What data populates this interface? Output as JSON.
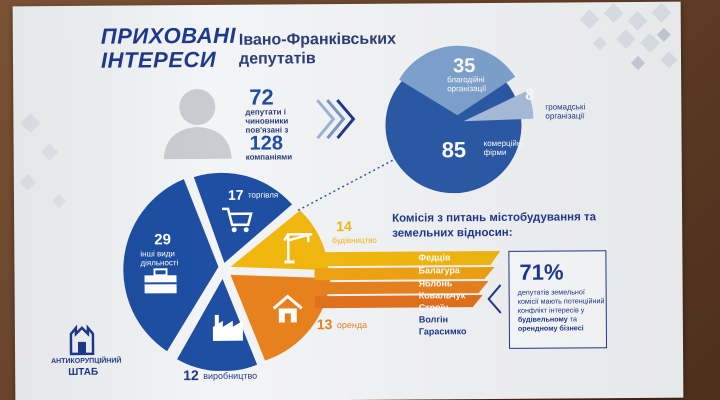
{
  "header": {
    "title_line1": "ПРИХОВАНІ",
    "title_line2": "ІНТЕРЕСИ",
    "subtitle": "Івано-Франківських депутатів"
  },
  "summary": {
    "count_people": "72",
    "people_text": "депутати і чиновники пов'язані з",
    "count_companies": "128",
    "companies_text": "компаніями"
  },
  "org_pie": {
    "items": [
      {
        "value": "35",
        "label": "благодійні організації"
      },
      {
        "value": "8",
        "label": "громадські організації"
      },
      {
        "value": "85",
        "label": "комерційні фірми"
      }
    ]
  },
  "activity_pie": {
    "items": [
      {
        "value": "17",
        "label": "торгівля"
      },
      {
        "value": "14",
        "label": "будівництво"
      },
      {
        "value": "13",
        "label": "оренда"
      },
      {
        "value": "12",
        "label": "виробництво"
      },
      {
        "value": "29",
        "label": "інші види діяльності"
      }
    ]
  },
  "committee": {
    "title": "Комісія з питань містобудування та земельних відносин:",
    "names": [
      "Федців",
      "Балагура",
      "Яблонь",
      "Ковальчук",
      "Строїч",
      "Волгін",
      "Гарасимко"
    ]
  },
  "stat_box": {
    "percent": "71%",
    "text_start": "депутатів земельної комісії мають потенційний конфлікт інтересів у",
    "text_bold1": "будівельному",
    "text_mid": "та",
    "text_bold2": "орендному бізнесі"
  },
  "logo": {
    "line1": "АНТИКОРУПЦІЙНИЙ",
    "line2": "ШТАБ"
  },
  "colors": {
    "blue_dark": "#1e3a8c",
    "blue_pie": "#2b5aa6",
    "blue_light": "#7fa3cf",
    "orange": "#e8821e",
    "yellow": "#f2b80f"
  }
}
